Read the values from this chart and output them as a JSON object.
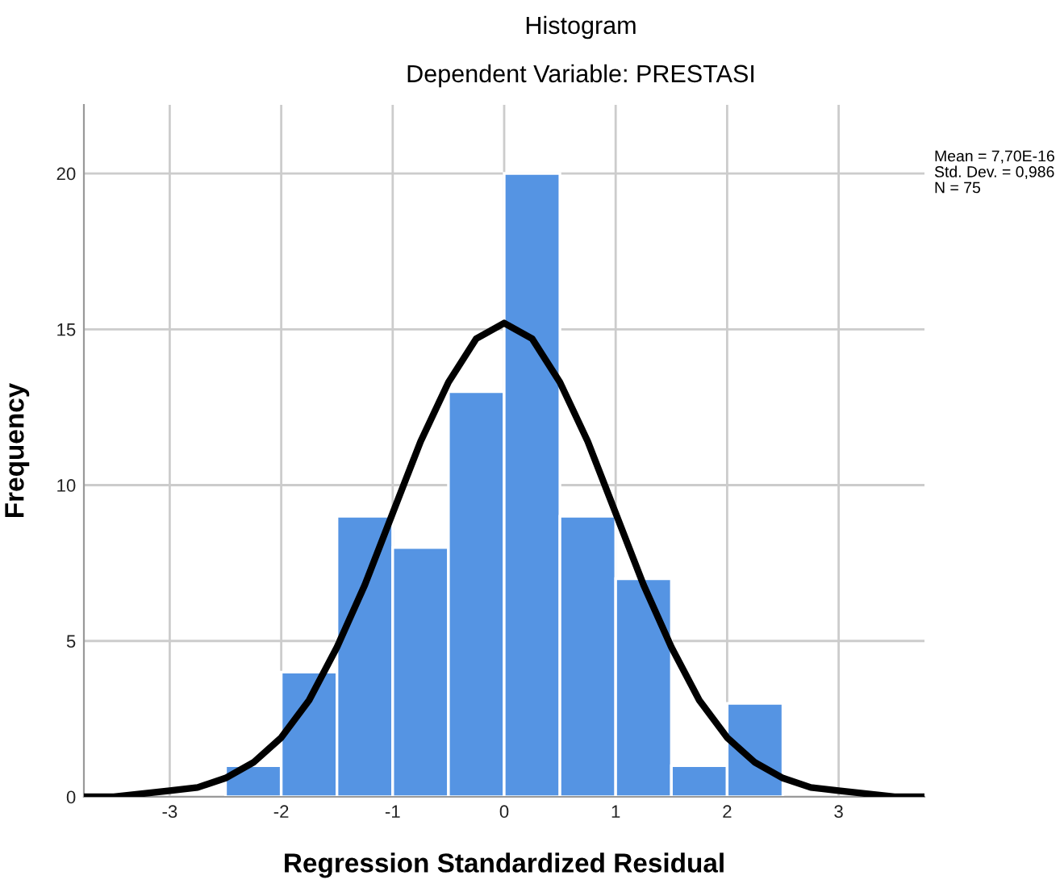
{
  "chart_data": {
    "type": "histogram",
    "title": "Histogram",
    "subtitle": "Dependent Variable: PRESTASI",
    "xlabel": "Regression Standardized Residual",
    "ylabel": "Frequency",
    "bins": [
      -2.5,
      -2.0,
      -1.5,
      -1.0,
      -0.5,
      0.0,
      0.5,
      1.0,
      1.5,
      2.0,
      2.5
    ],
    "values": [
      1,
      4,
      9,
      8,
      13,
      20,
      9,
      7,
      1,
      3
    ],
    "color": "#5594e3",
    "series": [
      {
        "type": "line",
        "color": "#000000",
        "x": [
          -3.75,
          -3.5,
          -3.25,
          -3.0,
          -2.75,
          -2.5,
          -2.25,
          -2.0,
          -1.75,
          -1.5,
          -1.25,
          -1.0,
          -0.75,
          -0.5,
          -0.25,
          0.0,
          0.25,
          0.5,
          0.75,
          1.0,
          1.25,
          1.5,
          1.75,
          2.0,
          2.25,
          2.5,
          2.75,
          3.0,
          3.25,
          3.5,
          3.75
        ],
        "values": [
          0.0,
          0.0,
          0.1,
          0.2,
          0.3,
          0.6,
          1.1,
          1.9,
          3.1,
          4.8,
          6.8,
          9.1,
          11.4,
          13.3,
          14.7,
          15.2,
          14.7,
          13.3,
          11.4,
          9.1,
          6.8,
          4.8,
          3.1,
          1.9,
          1.1,
          0.6,
          0.3,
          0.2,
          0.1,
          0.0,
          0.0
        ]
      }
    ],
    "annotations": [
      "Mean = 7,70E-16\nStd. Dev. = 0,986\nN = 75"
    ],
    "xlim": [
      -3.77,
      3.77
    ],
    "ylim": [
      0,
      22.2
    ],
    "xticks": [
      -3,
      -2,
      -1,
      0,
      1,
      2,
      3
    ],
    "yticks": [
      0,
      5,
      10,
      15,
      20
    ],
    "grid": true,
    "legend": false
  }
}
